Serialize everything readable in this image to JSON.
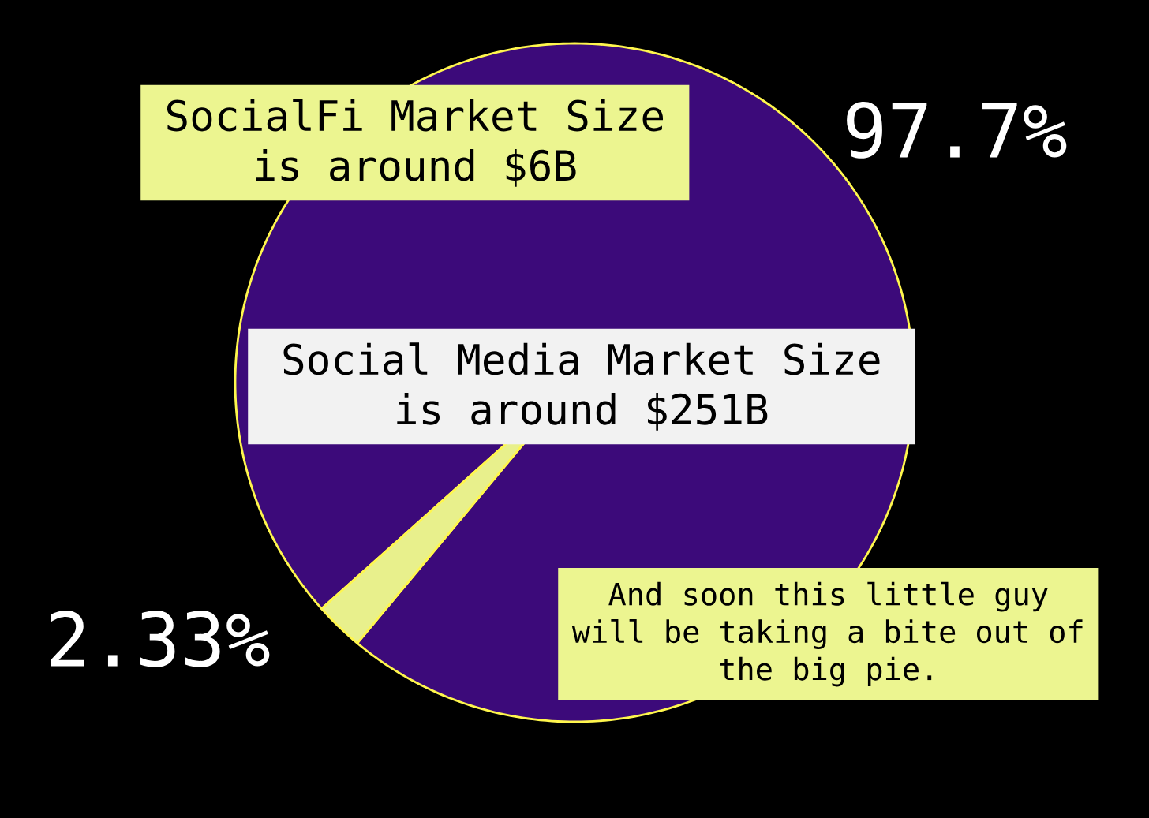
{
  "chart_data": {
    "type": "pie",
    "categories": [
      null,
      null
    ],
    "values": [
      97.7,
      2.33
    ],
    "colors": [
      "#3c0a7a",
      "#e8f08c"
    ],
    "value_labels": [
      "97.7%",
      "2.33%"
    ],
    "annotations": [
      "SocialFi Market Size is around $6B",
      "Social Media Market Size is around $251B",
      "And soon this little guy will be taking a bite out of the big pie."
    ]
  }
}
